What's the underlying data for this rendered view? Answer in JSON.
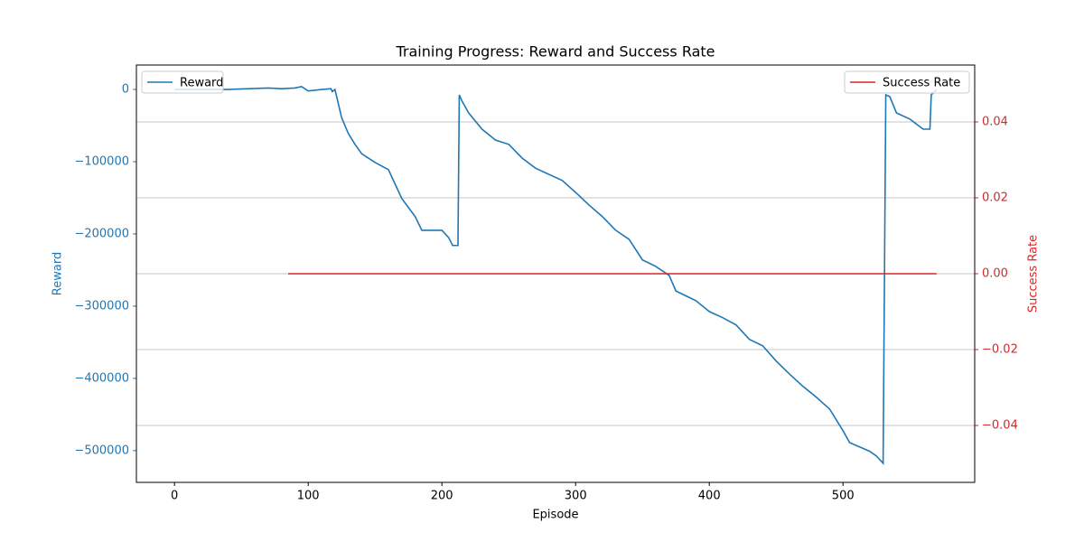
{
  "chart_data": {
    "type": "line",
    "title": "Training Progress: Reward and Success Rate",
    "xlabel": "Episode",
    "ylabel": "Reward",
    "y2label": "Success Rate",
    "xlim": [
      -28.5,
      598.5
    ],
    "xticks": [
      0,
      100,
      200,
      300,
      400,
      500
    ],
    "ylim": [
      -544000,
      33800
    ],
    "yticks": [
      0,
      {
        "value": -100000,
        "label": "−100000"
      },
      {
        "value": -200000,
        "label": "−200000"
      },
      {
        "value": -300000,
        "label": "−300000"
      },
      {
        "value": -400000,
        "label": "−400000"
      },
      {
        "value": -500000,
        "label": "−500000"
      }
    ],
    "y2lim": [
      -0.055,
      0.055
    ],
    "y2ticks": [
      {
        "value": -0.04,
        "label": "−0.04"
      },
      {
        "value": -0.02,
        "label": "−0.02"
      },
      {
        "value": 0,
        "label": "0.00"
      },
      {
        "value": 0.02,
        "label": "0.02"
      },
      {
        "value": 0.04,
        "label": "0.04"
      }
    ],
    "grid": "y2",
    "series": [
      {
        "name": "Reward",
        "color": "#1f77b4",
        "legend": "upper left",
        "x": [
          0,
          40,
          70,
          80,
          90,
          95,
          100,
          110,
          117,
          118,
          120,
          125,
          130,
          135,
          140,
          150,
          160,
          165,
          170,
          180,
          185,
          200,
          205,
          208,
          212,
          213,
          215,
          220,
          230,
          240,
          250,
          260,
          270,
          290,
          300,
          310,
          320,
          330,
          340,
          350,
          360,
          370,
          375,
          390,
          400,
          410,
          420,
          430,
          440,
          450,
          460,
          470,
          480,
          490,
          500,
          505,
          520,
          525,
          530,
          532,
          535,
          540,
          550,
          560,
          565,
          566,
          570
        ],
        "values": [
          0,
          0,
          2000,
          1000,
          2000,
          4000,
          -2000,
          0,
          1000,
          -3000,
          0,
          -39000,
          -61000,
          -76000,
          -89000,
          -101000,
          -111000,
          -131000,
          -151000,
          -176000,
          -195000,
          -195000,
          -205000,
          -216000,
          -216000,
          -7500,
          -16000,
          -32500,
          -55000,
          -70000,
          -76000,
          -95000,
          -109000,
          -126000,
          -142500,
          -160000,
          -176000,
          -195000,
          -207500,
          -236000,
          -245000,
          -257500,
          -279000,
          -292500,
          -307500,
          -316000,
          -326000,
          -346000,
          -355000,
          -376000,
          -394000,
          -411000,
          -426000,
          -442500,
          -472500,
          -489000,
          -501000,
          -507500,
          -517500,
          -7500,
          -10000,
          -32500,
          -41000,
          -55000,
          -55000,
          -7500,
          0
        ]
      },
      {
        "name": "Success Rate",
        "color": "#d62728",
        "axis": "y2",
        "legend": "upper right",
        "x": [
          85,
          570
        ],
        "values": [
          0,
          0
        ]
      }
    ]
  }
}
